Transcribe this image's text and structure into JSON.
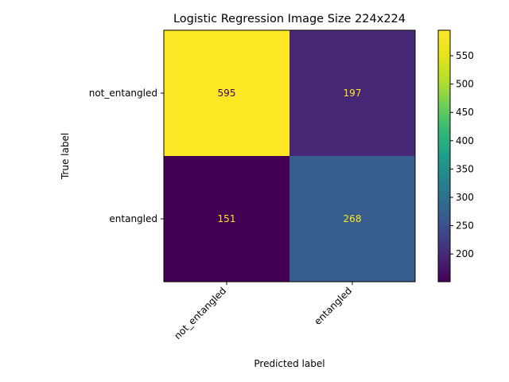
{
  "chart_data": {
    "type": "heatmap",
    "title": "Logistic Regression Image Size 224x224",
    "xlabel": "Predicted label",
    "ylabel": "True label",
    "x_categories": [
      "not_entangled",
      "entangled"
    ],
    "y_categories": [
      "not_entangled",
      "entangled"
    ],
    "values": [
      [
        595,
        197
      ],
      [
        151,
        268
      ]
    ],
    "colorbar": {
      "min": 151,
      "max": 595,
      "ticks": [
        200,
        250,
        300,
        350,
        400,
        450,
        500,
        550
      ]
    },
    "colormap": "viridis",
    "grid": false,
    "text_colors": {
      "on_dark": "#fde725",
      "on_light": "#440154"
    }
  }
}
